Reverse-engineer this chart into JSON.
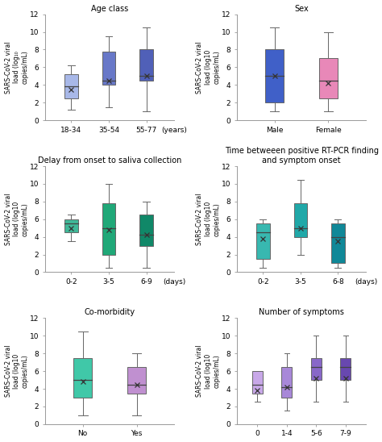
{
  "subplots": [
    {
      "title": "Age class",
      "unit": "(years)",
      "ylabel": "SARS-CoV-2 viral\nload (log₁₀\ncopies/mL)",
      "ylim": [
        0,
        12
      ],
      "yticks": [
        0,
        2,
        4,
        6,
        8,
        10,
        12
      ],
      "categories": [
        "18-34",
        "35-54",
        "55-77"
      ],
      "boxes": [
        {
          "q1": 2.5,
          "median": 3.8,
          "q3": 5.2,
          "whislo": 1.2,
          "whishi": 6.2,
          "mean": 3.5,
          "color": "#a8b8e8"
        },
        {
          "q1": 4.0,
          "median": 4.5,
          "q3": 7.8,
          "whislo": 1.5,
          "whishi": 9.5,
          "mean": 4.5,
          "color": "#6878c8"
        },
        {
          "q1": 4.5,
          "median": 5.0,
          "q3": 8.0,
          "whislo": 1.0,
          "whishi": 10.5,
          "mean": 5.0,
          "color": "#5060b8"
        }
      ]
    },
    {
      "title": "Sex",
      "unit": "",
      "ylabel": "SARS-CoV-2 viral\nload (log10\ncopies/mL)",
      "ylim": [
        0,
        12
      ],
      "yticks": [
        0,
        2,
        4,
        6,
        8,
        10,
        12
      ],
      "categories": [
        "Male",
        "Female"
      ],
      "boxes": [
        {
          "q1": 2.0,
          "median": 5.0,
          "q3": 8.0,
          "whislo": 1.0,
          "whishi": 10.5,
          "mean": 5.0,
          "color": "#4060c8"
        },
        {
          "q1": 2.5,
          "median": 4.5,
          "q3": 7.0,
          "whislo": 1.0,
          "whishi": 10.0,
          "mean": 4.2,
          "color": "#e888b8"
        }
      ]
    },
    {
      "title": "Delay from onset to saliva collection",
      "unit": "(days)",
      "ylabel": "SARS-CoV-2 viral\nload (log10\ncopies/mL)",
      "ylim": [
        0,
        12
      ],
      "yticks": [
        0,
        2,
        4,
        6,
        8,
        10,
        12
      ],
      "categories": [
        "0-2",
        "3-5",
        "6-9"
      ],
      "boxes": [
        {
          "q1": 4.5,
          "median": 5.5,
          "q3": 6.0,
          "whislo": 3.5,
          "whishi": 6.5,
          "mean": 5.0,
          "color": "#40b898"
        },
        {
          "q1": 2.0,
          "median": 5.0,
          "q3": 7.8,
          "whislo": 0.5,
          "whishi": 10.0,
          "mean": 4.8,
          "color": "#20a878"
        },
        {
          "q1": 3.0,
          "median": 4.2,
          "q3": 6.5,
          "whislo": 0.5,
          "whishi": 8.0,
          "mean": 4.2,
          "color": "#108868"
        }
      ]
    },
    {
      "title": "Time betweeen positive RT-PCR finding\nand symptom onset",
      "unit": "(days)",
      "ylabel": "SARS-CoV-2 viral\nload (log10\ncopies/mL)",
      "ylim": [
        0,
        12
      ],
      "yticks": [
        0,
        2,
        4,
        6,
        8,
        10,
        12
      ],
      "categories": [
        "0-2",
        "3-5",
        "6-8"
      ],
      "boxes": [
        {
          "q1": 1.5,
          "median": 4.5,
          "q3": 5.5,
          "whislo": 0.5,
          "whishi": 6.0,
          "mean": 3.8,
          "color": "#38b8b0"
        },
        {
          "q1": 4.0,
          "median": 5.0,
          "q3": 7.8,
          "whislo": 2.0,
          "whishi": 10.5,
          "mean": 5.0,
          "color": "#20a8a8"
        },
        {
          "q1": 1.0,
          "median": 4.0,
          "q3": 5.5,
          "whislo": 0.5,
          "whishi": 6.0,
          "mean": 3.5,
          "color": "#108898"
        }
      ]
    },
    {
      "title": "Co-morbidity",
      "unit": "",
      "ylabel": "SARS-CoV-2 viral\nload (log10\ncopies/mL)",
      "ylim": [
        0,
        12
      ],
      "yticks": [
        0,
        2,
        4,
        6,
        8,
        10,
        12
      ],
      "categories": [
        "No",
        "Yes"
      ],
      "boxes": [
        {
          "q1": 3.0,
          "median": 5.0,
          "q3": 7.5,
          "whislo": 1.0,
          "whishi": 10.5,
          "mean": 4.8,
          "color": "#40c8a8"
        },
        {
          "q1": 3.5,
          "median": 4.5,
          "q3": 6.5,
          "whislo": 1.0,
          "whishi": 8.0,
          "mean": 4.5,
          "color": "#c090d0"
        }
      ]
    },
    {
      "title": "Number of symptoms",
      "unit": "",
      "ylabel": "SARS-CoV-2 viral\nload (log10\ncopies/mL)",
      "ylim": [
        0,
        12
      ],
      "yticks": [
        0,
        2,
        4,
        6,
        8,
        10,
        12
      ],
      "categories": [
        "0",
        "1-4",
        "5-6",
        "7-9"
      ],
      "boxes": [
        {
          "q1": 3.5,
          "median": 4.5,
          "q3": 6.0,
          "whislo": 2.5,
          "whishi": 6.0,
          "mean": 3.8,
          "color": "#c8a8e8"
        },
        {
          "q1": 3.0,
          "median": 4.2,
          "q3": 6.5,
          "whislo": 1.5,
          "whishi": 8.0,
          "mean": 4.2,
          "color": "#a888d8"
        },
        {
          "q1": 5.0,
          "median": 6.5,
          "q3": 7.5,
          "whislo": 2.5,
          "whishi": 10.0,
          "mean": 5.2,
          "color": "#8868c8"
        },
        {
          "q1": 5.0,
          "median": 6.5,
          "q3": 7.5,
          "whislo": 2.5,
          "whishi": 10.0,
          "mean": 5.2,
          "color": "#6848b0"
        }
      ]
    }
  ]
}
